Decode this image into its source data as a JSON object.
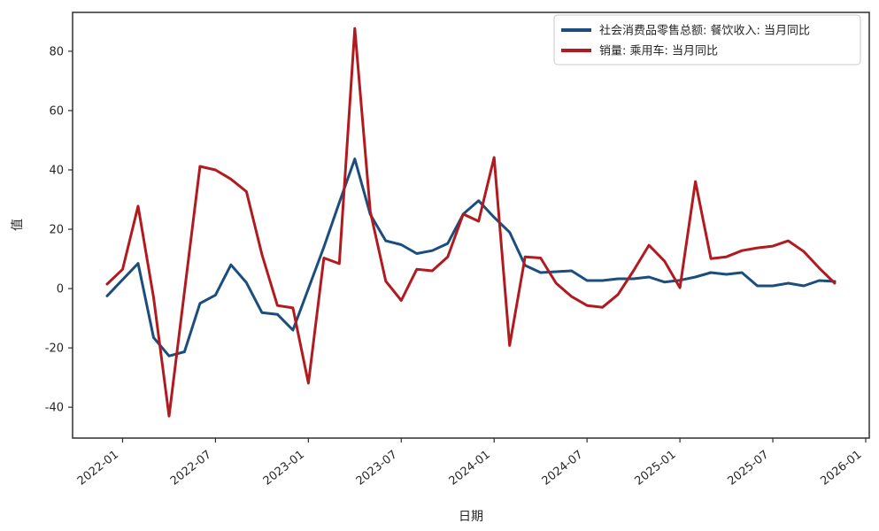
{
  "chart_data": {
    "type": "line",
    "title": "",
    "xlabel": "日期",
    "ylabel": "值",
    "grid": false,
    "legend_position": "upper right",
    "ylim": [
      -50.4,
      93.1
    ],
    "yticks": [
      80,
      60,
      40,
      20,
      0,
      -20,
      -40
    ],
    "xticks": [
      {
        "label": "2022-01",
        "month_index": 1
      },
      {
        "label": "2022-07",
        "month_index": 7
      },
      {
        "label": "2023-01",
        "month_index": 13
      },
      {
        "label": "2023-07",
        "month_index": 19
      },
      {
        "label": "2024-01",
        "month_index": 25
      },
      {
        "label": "2024-07",
        "month_index": 31
      },
      {
        "label": "2025-01",
        "month_index": 37
      },
      {
        "label": "2025-07",
        "month_index": 43
      },
      {
        "label": "2026-01",
        "month_index": 49
      }
    ],
    "x": [
      "2021-12",
      "2022-01",
      "2022-02",
      "2022-03",
      "2022-04",
      "2022-05",
      "2022-06",
      "2022-07",
      "2022-08",
      "2022-09",
      "2022-10",
      "2022-11",
      "2022-12",
      "2023-01",
      "2023-02",
      "2023-03",
      "2023-04",
      "2023-05",
      "2023-06",
      "2023-07",
      "2023-08",
      "2023-09",
      "2023-10",
      "2023-11",
      "2023-12",
      "2024-01",
      "2024-02",
      "2024-03",
      "2024-04",
      "2024-05",
      "2024-06",
      "2024-07",
      "2024-08",
      "2024-09",
      "2024-10",
      "2024-11",
      "2024-12",
      "2025-01",
      "2025-02",
      "2025-03",
      "2025-04",
      "2025-05",
      "2025-06",
      "2025-07",
      "2025-08",
      "2025-09",
      "2025-10",
      "2025-11"
    ],
    "series": [
      {
        "name": "社会消费品零售总额: 餐饮收入: 当月同比",
        "color": "#1b4d7d",
        "values": [
          -2.5,
          3.0,
          8.5,
          -16.5,
          -22.7,
          -21.3,
          -5.0,
          -2.2,
          8.0,
          2.0,
          -8.1,
          -8.7,
          -14.0,
          0.0,
          14.0,
          29.0,
          43.7,
          25.0,
          16.1,
          14.8,
          11.8,
          12.8,
          15.2,
          25.1,
          29.6,
          24.0,
          19.0,
          7.8,
          5.4,
          5.7,
          6.0,
          2.7,
          2.7,
          3.3,
          3.3,
          3.9,
          2.2,
          2.8,
          3.9,
          5.4,
          4.8,
          5.4,
          0.9,
          0.9,
          1.8,
          0.9,
          2.7,
          2.4
        ]
      },
      {
        "name": "销量: 乘用车: 当月同比",
        "color": "#b11a1f",
        "values": [
          1.5,
          6.5,
          27.8,
          -3.0,
          -43.0,
          -1.0,
          41.2,
          40.0,
          36.9,
          32.7,
          11.5,
          -5.7,
          -6.5,
          -31.9,
          10.3,
          8.4,
          87.7,
          26.0,
          2.5,
          -4.0,
          6.5,
          6.0,
          10.7,
          25.1,
          22.7,
          44.2,
          -19.2,
          10.7,
          10.3,
          1.8,
          -2.7,
          -5.7,
          -6.3,
          -2.0,
          6.0,
          14.6,
          9.3,
          0.3,
          36.1,
          10.1,
          10.7,
          12.8,
          13.7,
          14.3,
          16.1,
          12.5,
          6.9,
          1.8
        ]
      }
    ],
    "colors": {
      "axis": "#2e2e2e",
      "text": "#262626",
      "legend_border": "#c9c9c9",
      "background": "#ffffff"
    }
  }
}
